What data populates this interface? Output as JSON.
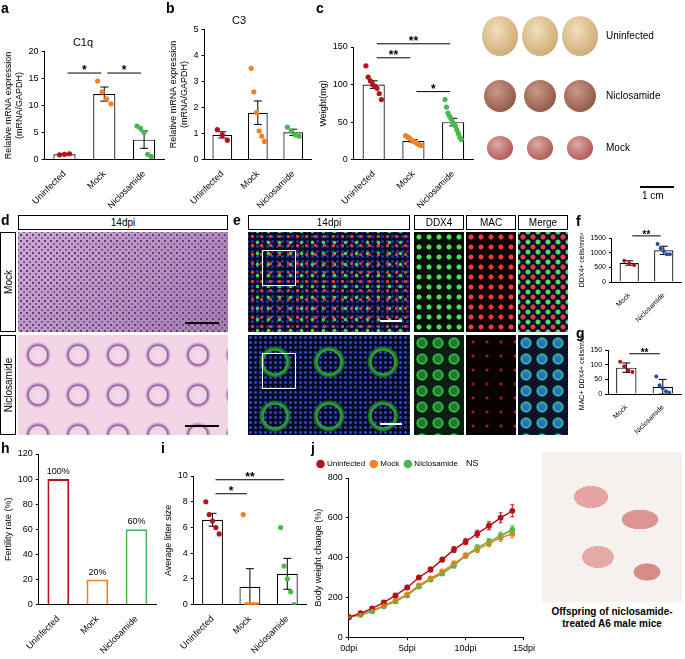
{
  "chart_data": [
    {
      "panel": "a",
      "type": "bar",
      "title": "C1q",
      "y_label": [
        "Relative mRNA expression",
        "(mRNA/GAPDH)"
      ],
      "categories": [
        "Uninfected",
        "Mock",
        "Niclosamide"
      ],
      "values": [
        1.0,
        12.1,
        3.7
      ],
      "errors": [
        0.1,
        1.3,
        1.6
      ],
      "points": [
        [
          0.9,
          1.0,
          1.1
        ],
        [
          14.5,
          12.5,
          11.2,
          10.3
        ],
        [
          6.2,
          5.8,
          5.0,
          1.0,
          0.6
        ]
      ],
      "colors": [
        "#b5121b",
        "#f5821f",
        "#4cb84c"
      ],
      "significance": [
        {
          "from": "Uninfected",
          "to": "Mock",
          "label": "*"
        },
        {
          "from": "Mock",
          "to": "Niclosamide",
          "label": "*"
        }
      ],
      "ylim": [
        0,
        20
      ],
      "yticks": [
        0,
        5,
        10,
        15,
        20
      ],
      "grid": false
    },
    {
      "panel": "b",
      "type": "bar",
      "title": "C3",
      "y_label": [
        "Relative mRNA expression",
        "(mRNA/GAPDH)"
      ],
      "categories": [
        "Uninfected",
        "Mock",
        "Niclosamide"
      ],
      "values": [
        0.95,
        1.8,
        1.05
      ],
      "errors": [
        0.12,
        0.45,
        0.12
      ],
      "points": [
        [
          1.15,
          0.95,
          0.75
        ],
        [
          3.5,
          2.6,
          1.8,
          1.1,
          0.9,
          0.7
        ],
        [
          1.25,
          1.1,
          0.95,
          0.9
        ]
      ],
      "colors": [
        "#b5121b",
        "#f5821f",
        "#4cb84c"
      ],
      "ylim": [
        0,
        5
      ],
      "yticks": [
        0,
        1,
        2,
        3,
        4,
        5
      ],
      "grid": false
    },
    {
      "panel": "c",
      "type": "bar",
      "y_label": "Weight(mg)",
      "categories": [
        "Uninfected",
        "Mock",
        "Niclosamide"
      ],
      "values": [
        100,
        25,
        50
      ],
      "errors": [
        5,
        2,
        5
      ],
      "points": [
        [
          125,
          110,
          105,
          100,
          98,
          95,
          88,
          80
        ],
        [
          32,
          30,
          28,
          25,
          24,
          22,
          20,
          19
        ],
        [
          80,
          70,
          62,
          58,
          55,
          50,
          48,
          45,
          40,
          35,
          30,
          27
        ]
      ],
      "colors": [
        "#b5121b",
        "#f5821f",
        "#4cb84c"
      ],
      "significance": [
        {
          "from": "Mock",
          "to": "Niclosamide",
          "label": "*"
        },
        {
          "from": "Uninfected",
          "to": "Mock",
          "label": "**"
        },
        {
          "from": "Uninfected",
          "to": "Niclosamide",
          "label": "**"
        }
      ],
      "ylim": [
        0,
        150
      ],
      "yticks": [
        0,
        50,
        100,
        150
      ],
      "grid": false
    },
    {
      "panel": "f",
      "type": "bar",
      "y_label": "DDX4+ cells/mm²",
      "categories": [
        "Mock",
        "Niclosamide"
      ],
      "values": [
        650,
        1080
      ],
      "errors": [
        75,
        140
      ],
      "points": [
        [
          730,
          640,
          580
        ],
        [
          1300,
          1150,
          1050,
          950,
          950
        ]
      ],
      "colors": [
        "#b5121b",
        "#1f4e9c"
      ],
      "significance": [
        {
          "from": "Mock",
          "to": "Niclosamide",
          "label": "**"
        }
      ],
      "ylim": [
        0,
        1500
      ],
      "yticks": [
        0,
        500,
        1000,
        1500
      ],
      "grid": false
    },
    {
      "panel": "g",
      "type": "bar",
      "y_label": "MAC+ DDX4+ cells/mm²",
      "categories": [
        "Mock",
        "Niclosamide"
      ],
      "values": [
        90,
        25
      ],
      "errors": [
        16,
        25
      ],
      "points": [
        [
          110,
          95,
          80,
          75
        ],
        [
          60,
          30,
          20,
          10,
          5
        ]
      ],
      "colors": [
        "#b5121b",
        "#1f4e9c"
      ],
      "significance": [
        {
          "from": "Mock",
          "to": "Niclosamide",
          "label": "**"
        }
      ],
      "ylim": [
        0,
        150
      ],
      "yticks": [
        0,
        50,
        100,
        150
      ],
      "grid": false
    },
    {
      "panel": "h",
      "type": "bar",
      "y_label": "Fertility rate (%)",
      "categories": [
        "Uninfected",
        "Mock",
        "Niclosamide"
      ],
      "values": [
        100,
        20,
        60
      ],
      "value_labels": [
        "100%",
        "20%",
        "60%"
      ],
      "data_labels": true,
      "colors": [
        "#b5121b",
        "#f5821f",
        "#4cb84c"
      ],
      "ylim": [
        0,
        120
      ],
      "yticks": [
        0,
        20,
        40,
        60,
        80,
        100,
        120
      ],
      "grid": false
    },
    {
      "panel": "i",
      "type": "bar",
      "y_label": "Average litter size",
      "categories": [
        "Uninfected",
        "Mock",
        "Niclosamide"
      ],
      "values": [
        6.6,
        1.4,
        2.4
      ],
      "errors": [
        0.5,
        1.4,
        1.2
      ],
      "points": [
        [
          8,
          7,
          6.5,
          6,
          5.5
        ],
        [
          7,
          0,
          0,
          0,
          0
        ],
        [
          6,
          3,
          2,
          1,
          0
        ]
      ],
      "colors": [
        "#b5121b",
        "#f5821f",
        "#4cb84c"
      ],
      "significance": [
        {
          "from": "Uninfected",
          "to": "Mock",
          "label": "*"
        },
        {
          "from": "Uninfected",
          "to": "Niclosamide",
          "label": "**"
        }
      ],
      "ylim": [
        0,
        10
      ],
      "yticks": [
        0,
        2,
        4,
        6,
        8,
        10
      ],
      "grid": false
    },
    {
      "panel": "j",
      "type": "line",
      "y_label": "Body weight change (%)",
      "x": [
        0,
        1,
        2,
        3,
        4,
        5,
        6,
        7,
        8,
        9,
        10,
        11,
        12,
        13,
        14
      ],
      "series": [
        {
          "name": "Uninfected",
          "color": "#b5121b",
          "values": [
            100,
            120,
            145,
            175,
            210,
            250,
            300,
            340,
            390,
            440,
            480,
            520,
            560,
            600,
            635
          ],
          "errors": [
            0,
            5,
            6,
            8,
            8,
            10,
            10,
            12,
            12,
            15,
            15,
            18,
            20,
            25,
            30
          ]
        },
        {
          "name": "Mock",
          "color": "#f5821f",
          "values": [
            100,
            115,
            135,
            160,
            185,
            215,
            260,
            295,
            330,
            370,
            410,
            440,
            470,
            500,
            520
          ],
          "errors": [
            0,
            4,
            5,
            6,
            7,
            8,
            9,
            10,
            10,
            12,
            12,
            14,
            15,
            18,
            20
          ]
        },
        {
          "name": "Niclosamide",
          "color": "#4cb84c",
          "values": [
            100,
            112,
            130,
            155,
            180,
            210,
            255,
            290,
            320,
            360,
            410,
            450,
            480,
            510,
            540
          ],
          "errors": [
            0,
            4,
            5,
            6,
            7,
            8,
            9,
            10,
            10,
            12,
            12,
            14,
            15,
            18,
            20
          ]
        }
      ],
      "annotation": "NS",
      "legend": "upper left",
      "xlim": [
        0,
        15
      ],
      "xticks": [
        {
          "value": 0,
          "label": "0dpi"
        },
        {
          "value": 5,
          "label": "5dpi"
        },
        {
          "value": 10,
          "label": "10dpi"
        },
        {
          "value": 15,
          "label": "15dpi"
        }
      ],
      "ylim": [
        0,
        800
      ],
      "yticks": [
        0,
        200,
        400,
        600,
        800
      ],
      "grid": false
    }
  ],
  "images": {
    "c": {
      "rows": [
        "Uninfected",
        "Niclosamide",
        "Mock"
      ],
      "scale_bar": "1 cm"
    },
    "d": {
      "panel": "d",
      "header": "14dpi",
      "rows": [
        "Mock",
        "Niclosamide"
      ]
    },
    "e": {
      "panel": "e",
      "header": "14dpi",
      "columns": [
        "DDX4",
        "MAC",
        "Merge"
      ]
    },
    "j": {
      "caption": "Offspring of niclosamide-treated A6 male mice"
    }
  }
}
